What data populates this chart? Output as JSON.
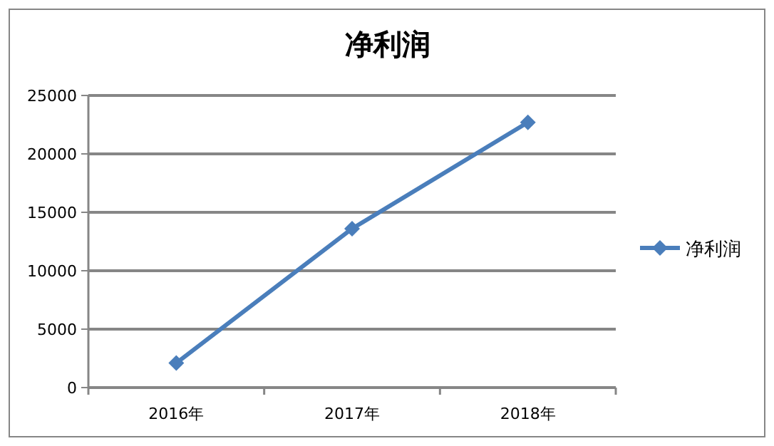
{
  "chart_data": {
    "type": "line",
    "title": "净利润",
    "categories": [
      "2016年",
      "2017年",
      "2018年"
    ],
    "series": [
      {
        "name": "净利润",
        "color": "#4a7ebb",
        "values": [
          2100,
          13600,
          22700
        ]
      }
    ],
    "ylim": [
      0,
      25000
    ],
    "yticks": [
      0,
      5000,
      10000,
      15000,
      20000,
      25000
    ],
    "grid": "y",
    "legend": "right",
    "marker": "diamond",
    "line_style": "solid"
  }
}
